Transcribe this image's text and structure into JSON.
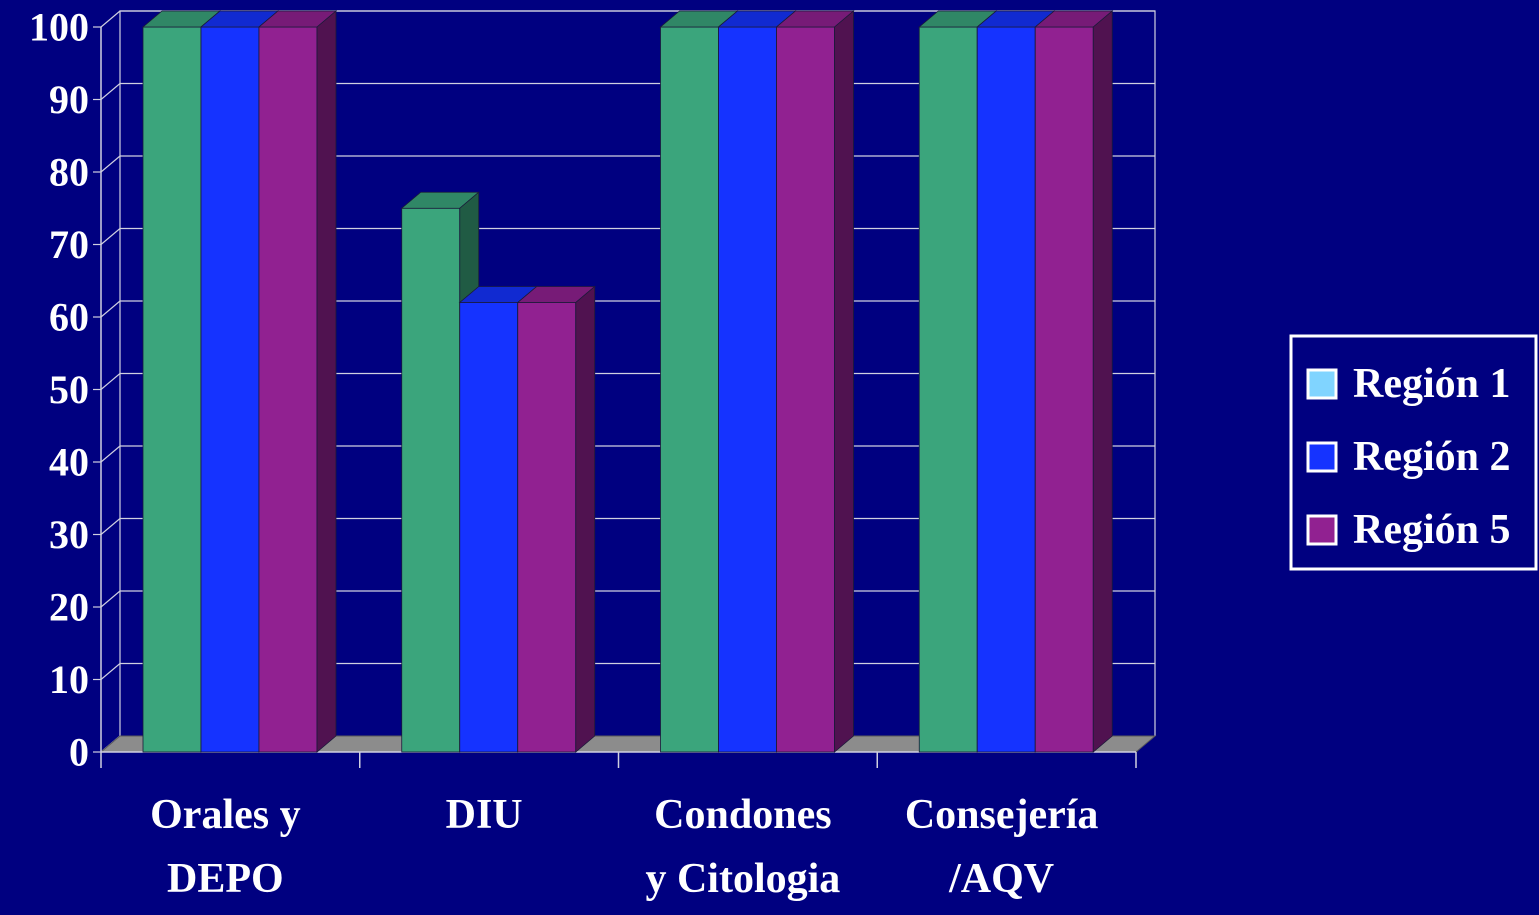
{
  "chart_data": {
    "type": "bar",
    "title": "",
    "xlabel": "",
    "ylabel": "",
    "ylim": [
      0,
      100
    ],
    "yticks": [
      0,
      10,
      20,
      30,
      40,
      50,
      60,
      70,
      80,
      90,
      100
    ],
    "grid": true,
    "three_d": true,
    "legend_position": "right",
    "categories": [
      [
        "Orales y",
        "DEPO"
      ],
      [
        "DIU"
      ],
      [
        "Condones",
        "y Citologia"
      ],
      [
        "Consejería",
        "/AQV"
      ]
    ],
    "series": [
      {
        "name": "Región 1",
        "values": [
          100,
          75,
          100,
          100
        ],
        "color": "#3BA57C",
        "legend_color": "#80D4FF"
      },
      {
        "name": "Región 2",
        "values": [
          100,
          62,
          100,
          100
        ],
        "color": "#1533FF",
        "legend_color": "#1533FF"
      },
      {
        "name": "Región 5",
        "values": [
          100,
          62,
          100,
          100
        ],
        "color": "#912191",
        "legend_color": "#912191"
      }
    ],
    "colors": {
      "background": "#000080",
      "plot_lines": "#D0D0E0",
      "floor": "#8C8C8C",
      "text": "#FFFFFF"
    }
  }
}
